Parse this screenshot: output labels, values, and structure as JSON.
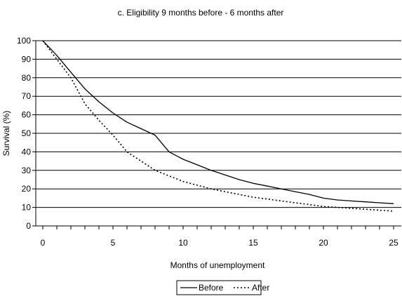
{
  "chart_data": {
    "type": "line",
    "title": "c. Eligibility 9 months before - 6 months after",
    "xlabel": "Months of unemployment",
    "ylabel": "Survival (%)",
    "xlim": [
      0,
      25
    ],
    "ylim": [
      0,
      100
    ],
    "x_ticks": [
      0,
      5,
      10,
      15,
      20,
      25
    ],
    "y_ticks": [
      0,
      10,
      20,
      30,
      40,
      50,
      60,
      70,
      80,
      90,
      100
    ],
    "grid": "horizontal",
    "legend_position": "bottom",
    "x": [
      0,
      1,
      2,
      3,
      4,
      5,
      6,
      7,
      8,
      9,
      10,
      11,
      12,
      13,
      14,
      15,
      16,
      17,
      18,
      19,
      20,
      21,
      22,
      23,
      24,
      25
    ],
    "series": [
      {
        "name": "Before",
        "line_style": "solid",
        "color": "#000000",
        "values": [
          100,
          92,
          83,
          74,
          67,
          61,
          56,
          52.5,
          49,
          40,
          36,
          33,
          30,
          27.5,
          25,
          23,
          21.5,
          20,
          18.5,
          17,
          15,
          14,
          13.5,
          13,
          12.5,
          12
        ]
      },
      {
        "name": "After",
        "line_style": "dotted",
        "color": "#000000",
        "values": [
          100,
          90,
          80,
          66,
          57,
          49,
          40,
          35,
          30,
          27,
          24,
          22,
          20,
          18.5,
          17,
          15.5,
          14.5,
          13.5,
          12.5,
          11.5,
          10.5,
          10,
          9.5,
          9,
          8.5,
          8
        ]
      }
    ]
  }
}
